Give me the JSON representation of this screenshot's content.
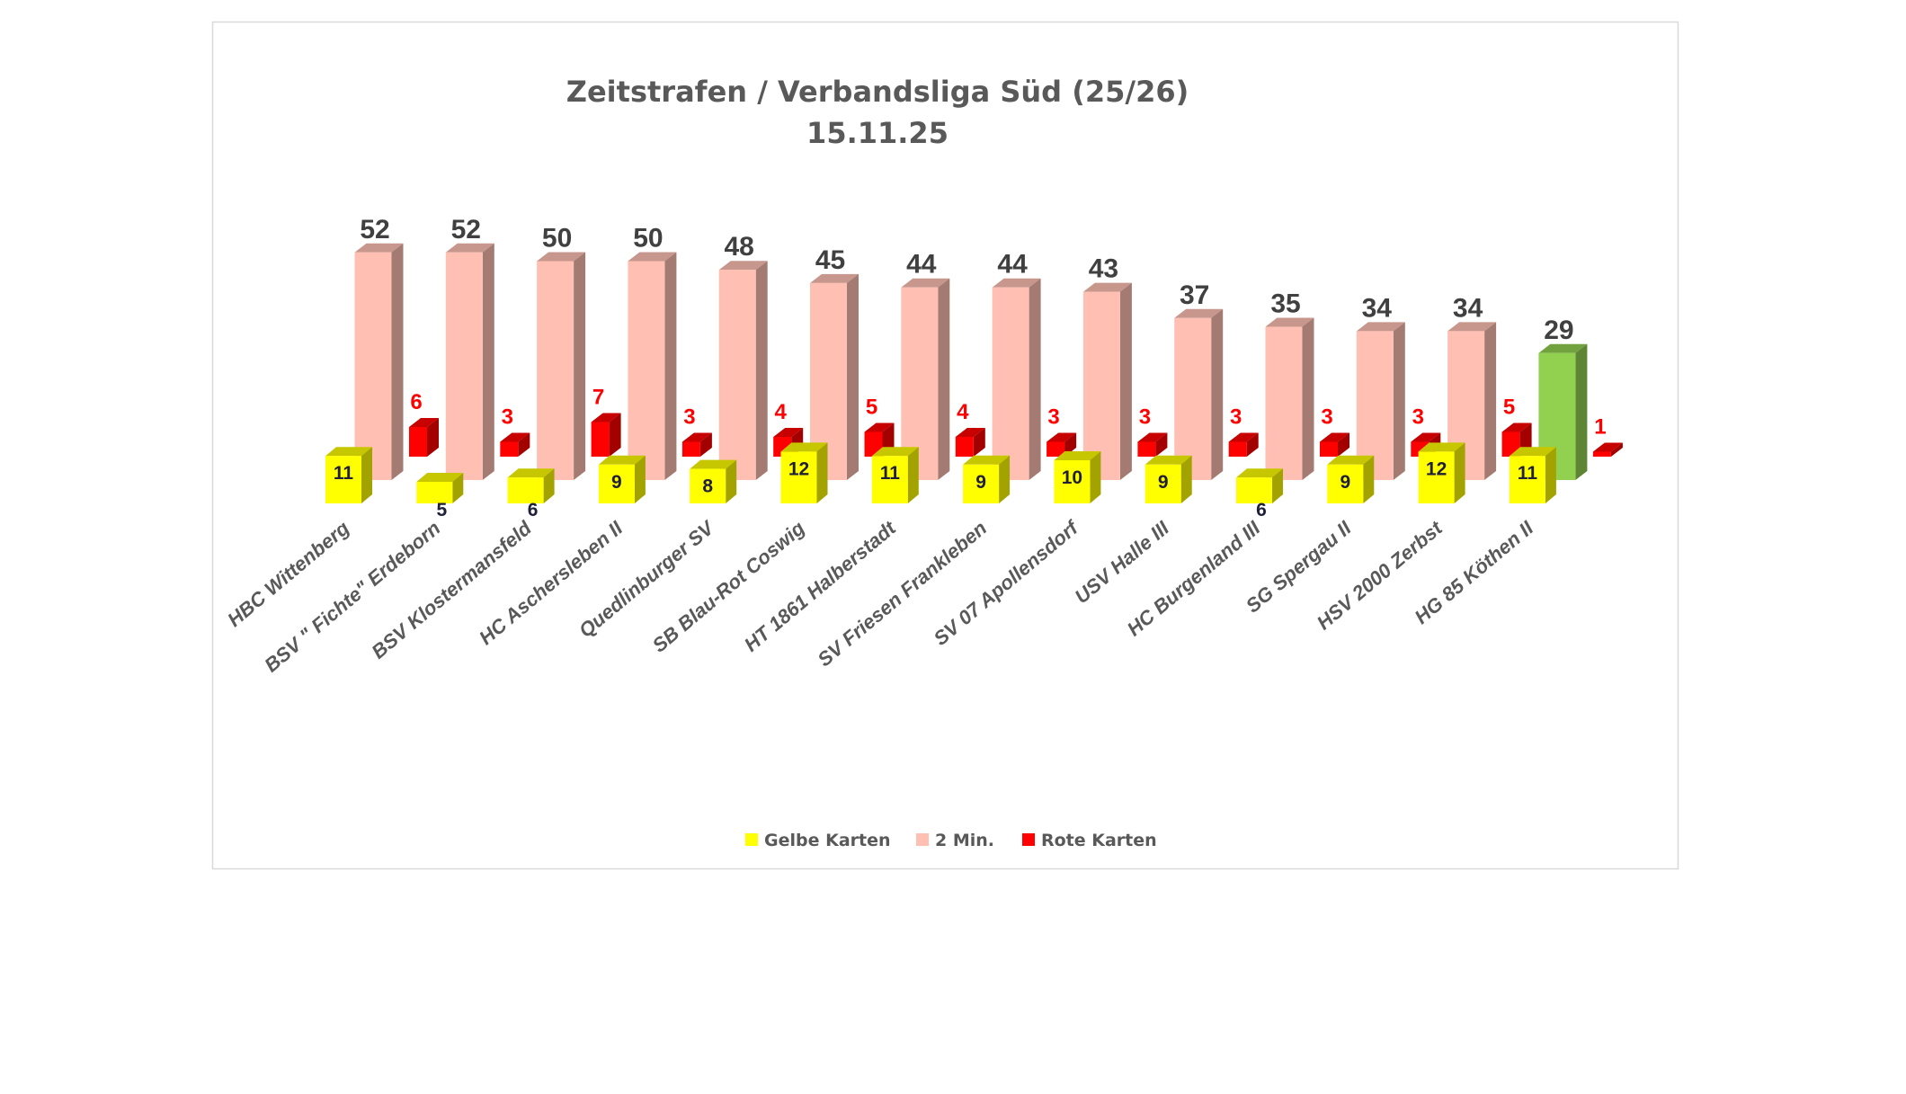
{
  "chart_data": {
    "type": "bar",
    "title": "Zeitstrafen / Verbandsliga Süd (25/26)",
    "subtitle": "15.11.25",
    "xlabel": "",
    "ylabel": "",
    "categories": [
      "HBC Wittenberg",
      "BSV \" Fichte\" Erdeborn",
      "BSV Klostermansfeld",
      "HC Aschersleben II",
      "Quedlinburger SV",
      "SB Blau-Rot Coswig",
      "HT 1861 Halberstadt",
      "SV Friesen Frankleben",
      "SV 07 Apollensdorf",
      "USV Halle III",
      "HC Burgenland III",
      "SG Spergau II",
      "HSV 2000 Zerbst",
      "HG 85 Köthen II"
    ],
    "series": [
      {
        "name": "Gelbe Karten",
        "color": "#ffff00",
        "values": [
          11,
          5,
          6,
          9,
          8,
          12,
          11,
          9,
          10,
          9,
          6,
          9,
          12,
          11
        ]
      },
      {
        "name": "2 Min.",
        "color": "#ffc0b3",
        "highlight_color": "#92d050",
        "highlight_index": 13,
        "values": [
          52,
          52,
          50,
          50,
          48,
          45,
          44,
          44,
          43,
          37,
          35,
          34,
          34,
          29
        ]
      },
      {
        "name": "Rote Karten",
        "color": "#ff0000",
        "values": [
          6,
          3,
          7,
          3,
          4,
          5,
          4,
          3,
          3,
          3,
          3,
          3,
          5,
          1
        ]
      }
    ],
    "legend": {
      "position": "bottom",
      "items": [
        "Gelbe Karten",
        "2 Min.",
        "Rote Karten"
      ]
    },
    "grid": false
  }
}
